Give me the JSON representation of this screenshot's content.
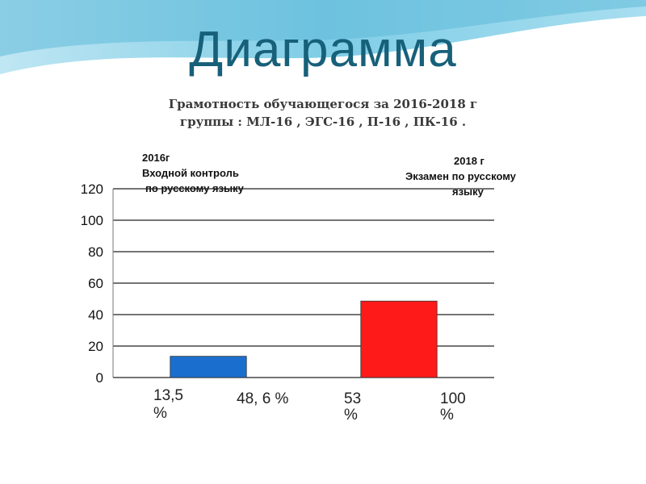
{
  "slide": {
    "title": "Диаграмма",
    "subtitle_line1": "Грамотность обучающегося за 2016-2018 г",
    "subtitle_line2": "группы : МЛ-16 , ЭГС-16 , П-16 , ПК-16 ."
  },
  "colors": {
    "title": "#17607a",
    "bar_2016": "#1a6fce",
    "bar_2018": "#ff1a1a"
  },
  "chart_data": {
    "type": "bar",
    "ylim": [
      0,
      120
    ],
    "yticks": [
      "0",
      "20",
      "40",
      "60",
      "80",
      "100",
      "120"
    ],
    "bars": [
      {
        "value": 13.5,
        "color": "#1a6fce"
      },
      {
        "value": 48.6,
        "color": "#ff1a1a"
      }
    ],
    "annotations": {
      "left_lines": [
        "2016г",
        "Входной контроль",
        "по русскому языку"
      ],
      "right_lines": [
        "2018 г",
        "Экзамен по русскому",
        "языку"
      ]
    },
    "bottom_labels": {
      "label_1": [
        "13,5",
        "%"
      ],
      "label_2": "48, 6 %",
      "label_3": [
        "53",
        "%"
      ],
      "label_4": [
        "100",
        "%"
      ]
    }
  }
}
